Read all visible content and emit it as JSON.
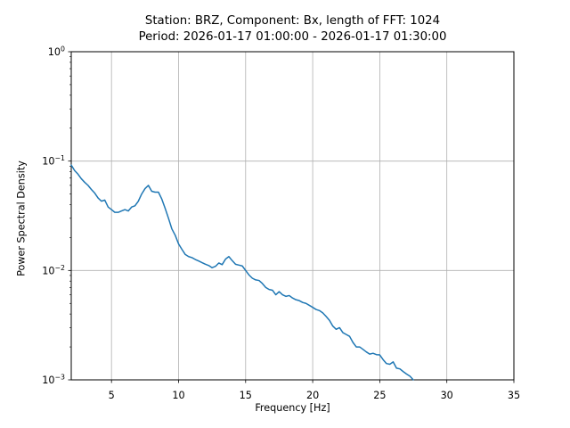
{
  "chart_data": {
    "type": "line",
    "title": "Station: BRZ, Component: Bx, length of FFT: 1024",
    "subtitle": "Period: 2026-01-17 01:00:00 - 2026-01-17 01:30:00",
    "xlabel": "Frequency [Hz]",
    "ylabel": "Power Spectral Density",
    "xlim": [
      2,
      35
    ],
    "ylim": [
      0.001,
      1.0
    ],
    "yscale": "log",
    "grid": true,
    "legend": "none",
    "xticks": [
      5,
      10,
      15,
      20,
      25,
      30,
      35
    ],
    "ytick_exponents": [
      0,
      -1,
      -2,
      -3
    ],
    "colors": {
      "line": "#1f77b4",
      "grid": "#b0b0b0",
      "spine": "#000000",
      "text": "#000000",
      "background": "#ffffff"
    },
    "series": [
      {
        "x": [
          2,
          2.25,
          2.5,
          2.75,
          3,
          3.25,
          3.5,
          3.75,
          4,
          4.25,
          4.5,
          4.75,
          5,
          5.25,
          5.5,
          5.75,
          6,
          6.25,
          6.5,
          6.75,
          7,
          7.25,
          7.5,
          7.75,
          8,
          8.25,
          8.5,
          8.75,
          9,
          9.25,
          9.5,
          9.75,
          10,
          10.25,
          10.5,
          10.75,
          11,
          11.25,
          11.5,
          11.75,
          12,
          12.25,
          12.5,
          12.75,
          13,
          13.25,
          13.5,
          13.75,
          14,
          14.25,
          14.5,
          14.75,
          15,
          15.25,
          15.5,
          15.75,
          16,
          16.25,
          16.5,
          16.75,
          17,
          17.25,
          17.5,
          17.75,
          18,
          18.25,
          18.5,
          18.75,
          19,
          19.25,
          19.5,
          19.75,
          20,
          20.25,
          20.5,
          20.75,
          21,
          21.25,
          21.5,
          21.75,
          22,
          22.25,
          22.5,
          22.75,
          23,
          23.25,
          23.5,
          23.75,
          24,
          24.25,
          24.5,
          24.75,
          25,
          25.25,
          25.5,
          25.75,
          26,
          26.25,
          26.5,
          26.75,
          27,
          27.25,
          27.5
        ],
        "y": [
          0.092,
          0.082,
          0.076,
          0.069,
          0.064,
          0.06,
          0.055,
          0.051,
          0.046,
          0.043,
          0.044,
          0.038,
          0.036,
          0.034,
          0.034,
          0.035,
          0.036,
          0.035,
          0.038,
          0.039,
          0.043,
          0.05,
          0.056,
          0.06,
          0.053,
          0.052,
          0.052,
          0.045,
          0.037,
          0.03,
          0.024,
          0.021,
          0.0175,
          0.0156,
          0.014,
          0.0134,
          0.0131,
          0.0126,
          0.0122,
          0.0118,
          0.0114,
          0.0111,
          0.0106,
          0.0109,
          0.0117,
          0.0113,
          0.0127,
          0.0134,
          0.0123,
          0.0114,
          0.0112,
          0.011,
          0.01,
          0.0091,
          0.0085,
          0.0082,
          0.0081,
          0.0076,
          0.007,
          0.0067,
          0.0066,
          0.006,
          0.0064,
          0.006,
          0.0058,
          0.0059,
          0.0056,
          0.0054,
          0.0053,
          0.0051,
          0.005,
          0.0048,
          0.0046,
          0.0044,
          0.0043,
          0.0041,
          0.0038,
          0.0035,
          0.0031,
          0.0029,
          0.003,
          0.0027,
          0.0026,
          0.0025,
          0.0022,
          0.002,
          0.002,
          0.0019,
          0.0018,
          0.00172,
          0.00175,
          0.0017,
          0.00169,
          0.00153,
          0.00141,
          0.00139,
          0.00146,
          0.00128,
          0.00126,
          0.00119,
          0.00113,
          0.00108,
          0.001
        ]
      }
    ]
  }
}
